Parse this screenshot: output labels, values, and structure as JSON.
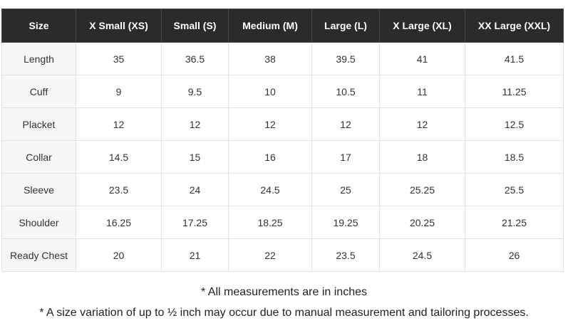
{
  "table": {
    "headers": [
      "Size",
      "X Small (XS)",
      "Small (S)",
      "Medium (M)",
      "Large (L)",
      "X Large (XL)",
      "XX Large (XXL)"
    ],
    "rows": [
      [
        "Length",
        "35",
        "36.5",
        "38",
        "39.5",
        "41",
        "41.5"
      ],
      [
        "Cuff",
        "9",
        "9.5",
        "10",
        "10.5",
        "11",
        "11.25"
      ],
      [
        "Placket",
        "12",
        "12",
        "12",
        "12",
        "12",
        "12.5"
      ],
      [
        "Collar",
        "14.5",
        "15",
        "16",
        "17",
        "18",
        "18.5"
      ],
      [
        "Sleeve",
        "23.5",
        "24",
        "24.5",
        "25",
        "25.25",
        "25.5"
      ],
      [
        "Shoulder",
        "16.25",
        "17.25",
        "18.25",
        "19.25",
        "20.25",
        "21.25"
      ],
      [
        "Ready Chest",
        "20",
        "21",
        "22",
        "23.5",
        "24.5",
        "26"
      ]
    ]
  },
  "notes": [
    "* All measurements are in inches",
    "* A size variation of up to ½ inch may occur due to manual measurement and tailoring processes."
  ]
}
